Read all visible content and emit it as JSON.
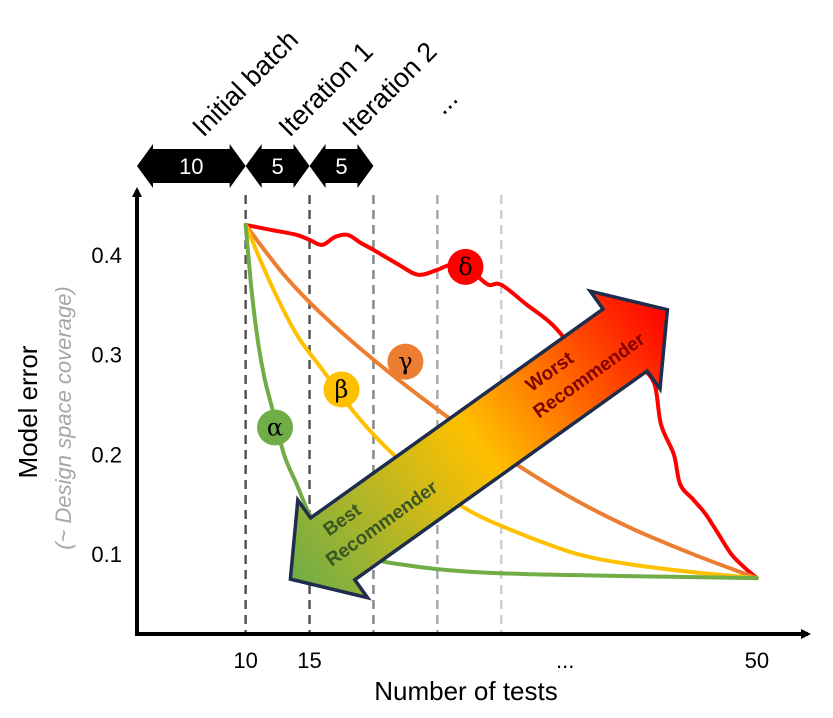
{
  "chart_data": {
    "type": "line",
    "xlabel": "Number of tests",
    "ylabel": "Model error",
    "ylabel_sub": "(~ Design space coverage)",
    "x_ticks": [
      {
        "value": 10,
        "label": "10"
      },
      {
        "value": 15,
        "label": "15"
      },
      {
        "value": 35,
        "label": "..."
      },
      {
        "value": 50,
        "label": "50"
      }
    ],
    "y_ticks": [
      {
        "value": 0.1,
        "label": "0.1"
      },
      {
        "value": 0.2,
        "label": "0.2"
      },
      {
        "value": 0.3,
        "label": "0.3"
      },
      {
        "value": 0.4,
        "label": "0.4"
      }
    ],
    "xlim": [
      1.5,
      54
    ],
    "ylim": [
      0.02,
      0.465
    ],
    "vlines": [
      10,
      15,
      20,
      25,
      30
    ],
    "phases": [
      {
        "label": "Initial batch",
        "size": "10",
        "from": 1.5,
        "to": 10
      },
      {
        "label": "Iteration 1",
        "size": "5",
        "from": 10,
        "to": 15
      },
      {
        "label": "Iteration 2",
        "size": "5",
        "from": 15,
        "to": 20
      },
      {
        "label": "...",
        "size": "",
        "from": 25,
        "to": 25
      }
    ],
    "series": [
      {
        "name": "α",
        "color": "#70ad47",
        "label_at": [
          12.3,
          0.227
        ],
        "x": [
          10,
          10.5,
          11,
          11.5,
          12,
          13,
          14,
          15,
          16,
          18,
          20,
          22,
          25,
          28,
          32,
          36,
          40,
          45,
          50
        ],
        "y": [
          0.43,
          0.36,
          0.31,
          0.275,
          0.25,
          0.2,
          0.17,
          0.14,
          0.125,
          0.105,
          0.095,
          0.09,
          0.085,
          0.082,
          0.08,
          0.079,
          0.078,
          0.077,
          0.076
        ]
      },
      {
        "name": "β",
        "color": "#ffc000",
        "label_at": [
          17.5,
          0.265
        ],
        "x": [
          10,
          12,
          14,
          16,
          18,
          20,
          22,
          25,
          28,
          32,
          36,
          40,
          45,
          50
        ],
        "y": [
          0.43,
          0.37,
          0.32,
          0.285,
          0.25,
          0.22,
          0.195,
          0.165,
          0.14,
          0.118,
          0.1,
          0.09,
          0.082,
          0.076
        ]
      },
      {
        "name": "γ",
        "color": "#ed7d31",
        "label_at": [
          22.5,
          0.293
        ],
        "x": [
          10,
          13,
          16,
          20,
          25,
          30,
          35,
          40,
          45,
          50
        ],
        "y": [
          0.43,
          0.38,
          0.34,
          0.295,
          0.245,
          0.2,
          0.16,
          0.127,
          0.1,
          0.076
        ]
      },
      {
        "name": "δ",
        "color": "#ff0000",
        "label_at": [
          27.2,
          0.388
        ],
        "x": [
          10,
          12,
          14,
          15,
          16,
          17,
          18,
          19,
          20,
          22,
          23.5,
          25,
          26,
          27,
          28,
          29,
          30,
          32,
          34,
          36,
          37,
          38,
          40,
          41,
          42,
          42.5,
          43.5,
          44,
          45,
          46,
          47,
          48,
          49,
          50
        ],
        "y": [
          0.43,
          0.425,
          0.42,
          0.415,
          0.41,
          0.418,
          0.42,
          0.412,
          0.405,
          0.39,
          0.38,
          0.385,
          0.39,
          0.388,
          0.38,
          0.37,
          0.37,
          0.35,
          0.33,
          0.3,
          0.285,
          0.285,
          0.28,
          0.285,
          0.27,
          0.23,
          0.2,
          0.17,
          0.155,
          0.14,
          0.12,
          0.1,
          0.087,
          0.076
        ]
      }
    ],
    "arrow": {
      "from": [
        13.5,
        0.075
      ],
      "to": [
        43,
        0.345
      ],
      "colors": [
        "#70ad47",
        "#ffc000",
        "#ff0000"
      ],
      "low_label": [
        "Best",
        "Recommender"
      ],
      "high_label": [
        "Worst",
        "Recommender"
      ],
      "low_color": "#375623",
      "high_color": "#7f0000"
    }
  }
}
